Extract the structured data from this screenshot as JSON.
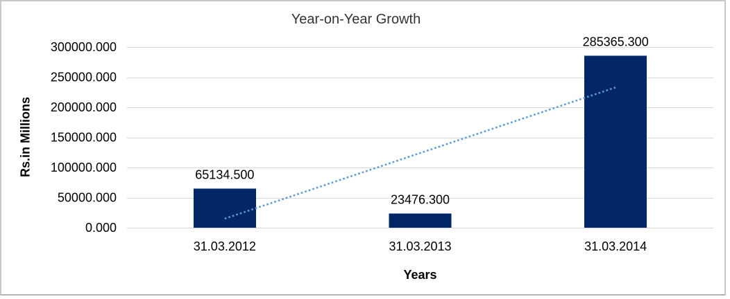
{
  "window": {
    "background": "#ffffff",
    "frame_border_color": "#c9c9c9"
  },
  "chart_data": {
    "type": "bar",
    "title": "Year-on-Year Growth",
    "xlabel": "Years",
    "ylabel": "Rs.in Millions",
    "categories": [
      "31.03.2012",
      "31.03.2013",
      "31.03.2014"
    ],
    "values": [
      65134.5,
      23476.3,
      285365.3
    ],
    "data_labels": [
      "65134.500",
      "23476.300",
      "285365.300"
    ],
    "ylim": [
      0,
      300000
    ],
    "y_ticks": [
      0,
      50000,
      100000,
      150000,
      200000,
      250000,
      300000
    ],
    "y_tick_labels": [
      "0.000",
      "50000.000",
      "100000.000",
      "150000.000",
      "200000.000",
      "250000.000",
      "300000.000"
    ],
    "grid": true,
    "legend": "none",
    "colors": {
      "bar": "#022666",
      "trendline": "#5b9bd5",
      "gridline": "#d9d9d9",
      "tick_text": "#000000",
      "title_text": "#333333"
    },
    "trendline": {
      "style": "dotted",
      "start_value": 15000,
      "end_value": 233000
    }
  }
}
